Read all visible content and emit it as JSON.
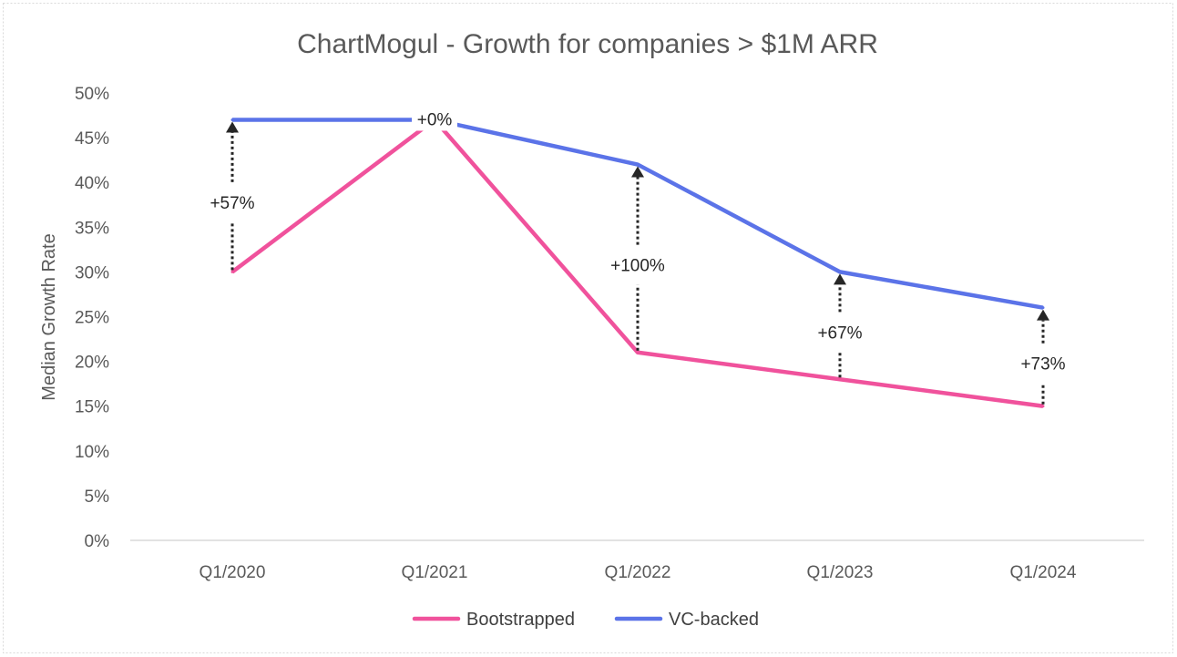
{
  "chart_data": {
    "type": "line",
    "title": "ChartMogul - Growth for companies > $1M ARR",
    "xlabel": "",
    "ylabel": "Median Growth Rate",
    "categories": [
      "Q1/2020",
      "Q1/2021",
      "Q1/2022",
      "Q1/2023",
      "Q1/2024"
    ],
    "ylim": [
      0,
      50
    ],
    "y_ticks": [
      "0%",
      "5%",
      "10%",
      "15%",
      "20%",
      "25%",
      "30%",
      "35%",
      "40%",
      "45%",
      "50%"
    ],
    "series": [
      {
        "name": "Bootstrapped",
        "color": "#F0529C",
        "values": [
          30,
          47,
          21,
          18,
          15
        ]
      },
      {
        "name": "VC-backed",
        "color": "#5B73E8",
        "values": [
          47,
          47,
          42,
          30,
          26
        ]
      }
    ],
    "annotations": [
      {
        "category": "Q1/2020",
        "label": "+57%"
      },
      {
        "category": "Q1/2021",
        "label": "+0%"
      },
      {
        "category": "Q1/2022",
        "label": "+100%"
      },
      {
        "category": "Q1/2023",
        "label": "+67%"
      },
      {
        "category": "Q1/2024",
        "label": "+73%"
      }
    ],
    "legend": {
      "position": "bottom"
    },
    "grid": false
  }
}
